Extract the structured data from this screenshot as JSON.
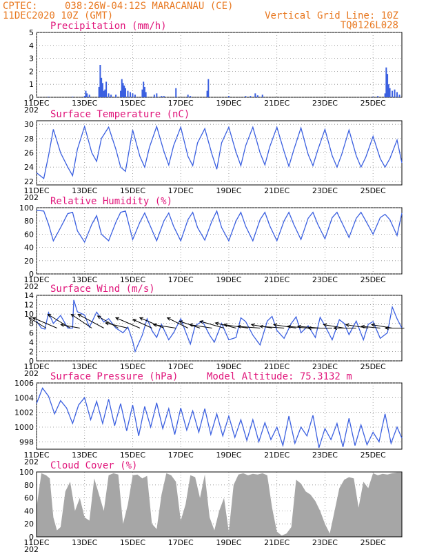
{
  "header": {
    "source": "CPTEC:",
    "location": "038:26W-04:12S   MARACANAU (CE)",
    "init_time": "11DEC2020 10Z (GMT)",
    "grid_note": "Vertical Grid Line: 10Z",
    "model_id": "TQ0126L028"
  },
  "colors": {
    "header": "#e87820",
    "title": "#e0147a",
    "series": "#3a5fe0",
    "cloud": "#a6a6a6"
  },
  "x_axis": {
    "labels": [
      "11DEC",
      "13DEC",
      "15DEC",
      "17DEC",
      "19DEC",
      "21DEC",
      "23DEC",
      "25DEC"
    ],
    "label_days": [
      0,
      2,
      4,
      6,
      8,
      10,
      12,
      14
    ],
    "range_days": [
      0,
      15.2
    ],
    "year_fragment": "202"
  },
  "chart_data": [
    {
      "type": "bar",
      "title": "Precipitation (mm/h)",
      "ylim": [
        0,
        5
      ],
      "yticks": [
        0,
        1,
        2,
        3,
        4,
        5
      ],
      "grid": true,
      "x": [
        0.5,
        1.5,
        2.0,
        2.05,
        2.1,
        2.2,
        2.6,
        2.65,
        2.7,
        2.75,
        2.8,
        2.85,
        2.9,
        3.0,
        3.1,
        3.3,
        3.5,
        3.55,
        3.6,
        3.65,
        3.7,
        3.8,
        3.9,
        4.0,
        4.1,
        4.4,
        4.45,
        4.5,
        4.55,
        4.9,
        5.0,
        5.2,
        5.3,
        5.8,
        6.3,
        6.4,
        7.1,
        7.15,
        8.0,
        8.7,
        8.9,
        9.1,
        9.2,
        9.4,
        14.0,
        14.2,
        14.5,
        14.55,
        14.6,
        14.65,
        14.7,
        14.8,
        14.9,
        15.0,
        15.1
      ],
      "values": [
        0.05,
        0.05,
        0.1,
        0.5,
        0.3,
        0.2,
        0.8,
        2.5,
        1.5,
        1.1,
        0.5,
        0.6,
        1.2,
        0.3,
        0.2,
        0.2,
        0.5,
        1.4,
        1.1,
        0.9,
        0.7,
        0.5,
        0.4,
        0.3,
        0.2,
        0.6,
        1.2,
        0.8,
        0.4,
        0.2,
        0.3,
        0.1,
        0.1,
        0.7,
        0.2,
        0.1,
        0.5,
        1.4,
        0.1,
        0.1,
        0.1,
        0.3,
        0.15,
        0.2,
        0.05,
        0.1,
        0.3,
        2.3,
        1.8,
        1.0,
        0.7,
        0.5,
        0.6,
        0.4,
        0.2
      ]
    },
    {
      "type": "line",
      "title": "Surface Temperature (nC)",
      "ylim": [
        21.5,
        30.5
      ],
      "yticks": [
        22,
        24,
        26,
        28,
        30
      ],
      "grid": true,
      "x": [
        0,
        0.3,
        0.5,
        0.7,
        1.0,
        1.3,
        1.5,
        1.7,
        2.0,
        2.3,
        2.5,
        2.7,
        3.0,
        3.3,
        3.5,
        3.7,
        4.0,
        4.3,
        4.5,
        4.7,
        5.0,
        5.3,
        5.5,
        5.7,
        6.0,
        6.3,
        6.5,
        6.7,
        7.0,
        7.3,
        7.5,
        7.7,
        8.0,
        8.3,
        8.5,
        8.7,
        9.0,
        9.3,
        9.5,
        9.7,
        10.0,
        10.3,
        10.5,
        10.7,
        11.0,
        11.3,
        11.5,
        11.7,
        12.0,
        12.3,
        12.5,
        12.7,
        13.0,
        13.3,
        13.5,
        13.7,
        14.0,
        14.3,
        14.5,
        14.7,
        15.0,
        15.2
      ],
      "values": [
        23.2,
        22.4,
        25.6,
        29.3,
        26.0,
        24.0,
        22.8,
        26.5,
        29.7,
        26.0,
        24.8,
        28.0,
        29.6,
        26.5,
        24.0,
        23.4,
        29.2,
        25.5,
        24.0,
        26.8,
        29.7,
        26.2,
        24.3,
        27.0,
        29.6,
        25.5,
        24.2,
        27.4,
        29.4,
        25.8,
        23.7,
        27.4,
        29.6,
        26.1,
        24.2,
        27.0,
        29.6,
        26.0,
        24.3,
        26.8,
        29.6,
        26.2,
        24.1,
        26.4,
        29.5,
        25.8,
        24.2,
        26.4,
        29.3,
        25.6,
        24.0,
        25.8,
        29.2,
        25.6,
        24.0,
        25.4,
        28.3,
        25.2,
        24.0,
        25.2,
        27.8,
        24.6
      ]
    },
    {
      "type": "line",
      "title": "Relative Humidity (%)",
      "ylim": [
        0,
        100
      ],
      "yticks": [
        0,
        20,
        40,
        60,
        80,
        100
      ],
      "grid": true,
      "x": [
        0,
        0.3,
        0.5,
        0.7,
        1.0,
        1.3,
        1.5,
        1.7,
        2.0,
        2.3,
        2.5,
        2.7,
        3.0,
        3.3,
        3.5,
        3.7,
        4.0,
        4.3,
        4.5,
        4.7,
        5.0,
        5.3,
        5.5,
        5.7,
        6.0,
        6.3,
        6.5,
        6.7,
        7.0,
        7.3,
        7.5,
        7.7,
        8.0,
        8.3,
        8.5,
        8.7,
        9.0,
        9.3,
        9.5,
        9.7,
        10.0,
        10.3,
        10.5,
        10.7,
        11.0,
        11.3,
        11.5,
        11.7,
        12.0,
        12.3,
        12.5,
        12.7,
        13.0,
        13.3,
        13.5,
        13.7,
        14.0,
        14.3,
        14.5,
        14.7,
        15.0,
        15.2
      ],
      "values": [
        96,
        95,
        75,
        50,
        70,
        91,
        93,
        65,
        48,
        75,
        88,
        60,
        50,
        78,
        93,
        95,
        52,
        78,
        92,
        75,
        50,
        80,
        92,
        72,
        50,
        82,
        93,
        70,
        51,
        80,
        95,
        70,
        50,
        80,
        93,
        72,
        50,
        82,
        93,
        73,
        50,
        80,
        93,
        75,
        52,
        84,
        93,
        75,
        53,
        85,
        93,
        78,
        55,
        84,
        93,
        80,
        60,
        85,
        90,
        82,
        58,
        92
      ]
    },
    {
      "type": "line",
      "title": "Surface Wind (m/s)",
      "ylim": [
        0,
        14
      ],
      "yticks": [
        0,
        2,
        4,
        6,
        8,
        10,
        12,
        14
      ],
      "grid": true,
      "x": [
        0,
        0.2,
        0.35,
        0.5,
        0.7,
        1.0,
        1.3,
        1.5,
        1.55,
        1.7,
        2.0,
        2.2,
        2.5,
        2.8,
        3.0,
        3.3,
        3.6,
        3.8,
        4.0,
        4.1,
        4.4,
        4.6,
        4.8,
        5.0,
        5.2,
        5.5,
        5.7,
        6.0,
        6.2,
        6.4,
        6.6,
        6.9,
        7.2,
        7.4,
        7.7,
        8.0,
        8.3,
        8.5,
        8.7,
        9.0,
        9.3,
        9.6,
        9.8,
        10.0,
        10.3,
        10.6,
        10.8,
        11.0,
        11.3,
        11.6,
        11.8,
        12.0,
        12.3,
        12.6,
        12.8,
        13.0,
        13.3,
        13.6,
        13.8,
        14.0,
        14.3,
        14.6,
        14.8,
        15.0,
        15.2
      ],
      "values": [
        8.5,
        7.0,
        6.8,
        10.3,
        8.0,
        9.7,
        7.0,
        7.0,
        13.0,
        10.5,
        9.8,
        7.2,
        10.4,
        8.3,
        9.0,
        7.0,
        6.0,
        7.2,
        4.2,
        2.0,
        5.5,
        9.0,
        6.5,
        5.0,
        7.8,
        4.5,
        6.0,
        9.0,
        6.2,
        3.6,
        7.5,
        8.5,
        5.5,
        4.0,
        8.0,
        4.5,
        5.0,
        9.2,
        8.4,
        5.5,
        3.4,
        8.5,
        9.5,
        6.5,
        4.8,
        8.0,
        9.4,
        6.0,
        7.5,
        5.0,
        9.3,
        7.5,
        4.5,
        8.8,
        8.0,
        5.6,
        8.5,
        4.5,
        7.8,
        8.4,
        4.8,
        6.0,
        11.5,
        9.0,
        7.0
      ]
    },
    {
      "type": "line",
      "title": "Surface Pressure (hPa)",
      "annotation": "Model Altitude: 75.3132 m",
      "ylim": [
        997,
        1006
      ],
      "yticks": [
        998,
        1000,
        1002,
        1004,
        1006
      ],
      "grid": true,
      "x": [
        0,
        0.25,
        0.5,
        0.75,
        1.0,
        1.25,
        1.5,
        1.75,
        2.0,
        2.25,
        2.5,
        2.75,
        3.0,
        3.25,
        3.5,
        3.75,
        4.0,
        4.25,
        4.5,
        4.75,
        5.0,
        5.25,
        5.5,
        5.75,
        6.0,
        6.25,
        6.5,
        6.75,
        7.0,
        7.25,
        7.5,
        7.75,
        8.0,
        8.25,
        8.5,
        8.75,
        9.0,
        9.25,
        9.5,
        9.75,
        10.0,
        10.25,
        10.5,
        10.75,
        11.0,
        11.25,
        11.5,
        11.75,
        12.0,
        12.25,
        12.5,
        12.75,
        13.0,
        13.25,
        13.5,
        13.75,
        14.0,
        14.25,
        14.5,
        14.75,
        15.0,
        15.2
      ],
      "values": [
        1003.2,
        1005.3,
        1004.2,
        1001.8,
        1003.6,
        1002.6,
        1000.5,
        1003.0,
        1004.0,
        1001.0,
        1003.5,
        1000.5,
        1003.8,
        1000.2,
        1003.2,
        999.5,
        1003.0,
        998.8,
        1002.8,
        1000.0,
        1003.3,
        999.8,
        1002.5,
        999.0,
        1002.6,
        999.6,
        1002.2,
        999.3,
        1002.5,
        999.0,
        1001.8,
        998.8,
        1001.5,
        998.6,
        1001.0,
        998.2,
        1001.0,
        998.0,
        1000.6,
        998.3,
        1000.0,
        997.5,
        1001.5,
        997.8,
        1000.0,
        998.8,
        1001.6,
        997.2,
        999.8,
        998.3,
        1000.5,
        997.3,
        1001.2,
        997.5,
        1000.3,
        997.6,
        999.3,
        998.0,
        1001.8,
        997.8,
        1000.0,
        998.5
      ]
    },
    {
      "type": "area",
      "title": "Cloud Cover (%)",
      "ylim": [
        0,
        100
      ],
      "yticks": [
        0,
        20,
        40,
        60,
        80,
        100
      ],
      "grid": true,
      "x": [
        0,
        0.2,
        0.4,
        0.55,
        0.7,
        0.85,
        1.0,
        1.2,
        1.4,
        1.6,
        1.8,
        2.0,
        2.2,
        2.4,
        2.6,
        2.8,
        3.0,
        3.2,
        3.4,
        3.6,
        3.8,
        4.0,
        4.2,
        4.4,
        4.6,
        4.8,
        5.0,
        5.2,
        5.4,
        5.6,
        5.8,
        6.0,
        6.2,
        6.4,
        6.6,
        6.8,
        7.0,
        7.2,
        7.4,
        7.6,
        7.8,
        8.0,
        8.2,
        8.4,
        8.6,
        8.8,
        9.0,
        9.2,
        9.4,
        9.6,
        9.8,
        10.0,
        10.2,
        10.4,
        10.6,
        10.8,
        11.0,
        11.2,
        11.4,
        11.6,
        11.8,
        12.0,
        12.2,
        12.4,
        12.6,
        12.8,
        13.0,
        13.2,
        13.4,
        13.6,
        13.8,
        14.0,
        14.2,
        14.4,
        14.6,
        14.8,
        15.0,
        15.2
      ],
      "values": [
        45,
        98,
        95,
        90,
        30,
        10,
        15,
        70,
        85,
        40,
        60,
        30,
        25,
        90,
        65,
        40,
        95,
        98,
        96,
        20,
        50,
        95,
        96,
        90,
        94,
        20,
        12,
        65,
        98,
        95,
        85,
        25,
        50,
        95,
        92,
        60,
        96,
        30,
        10,
        40,
        60,
        8,
        80,
        96,
        98,
        95,
        97,
        96,
        98,
        95,
        45,
        8,
        2,
        5,
        15,
        88,
        82,
        70,
        65,
        55,
        40,
        20,
        5,
        40,
        75,
        88,
        92,
        90,
        45,
        85,
        75,
        98,
        95,
        97,
        96,
        98,
        99,
        99
      ]
    }
  ],
  "wind_vectors": {
    "x": [
      0.0,
      0.45,
      1.0,
      1.4,
      1.9,
      2.4,
      3.0,
      3.4,
      3.9,
      4.4,
      4.9,
      5.4,
      5.9,
      6.4,
      6.9,
      7.4,
      7.9,
      8.4,
      8.9,
      9.4,
      9.9,
      10.4,
      10.9,
      11.4,
      11.9,
      12.4,
      12.9,
      13.4,
      13.9,
      14.4,
      14.9
    ],
    "dx_ms": [
      -5.0,
      -7.0,
      -6.5,
      -5.5,
      -6.0,
      -7.5,
      -6.0,
      -6.5,
      -7.0,
      -5.5,
      -7.0,
      -6.5,
      -6.0,
      -6.0,
      -6.5,
      -7.0,
      -6.0,
      -7.0,
      -6.5,
      -6.0,
      -7.0,
      -6.5,
      -6.0,
      -6.5,
      -7.0,
      -6.0,
      -6.5,
      -6.5,
      -5.5,
      -6.0,
      -5.5
    ],
    "dy_ms": [
      3.0,
      3.0,
      4.0,
      1.0,
      4.0,
      4.0,
      3.5,
      1.5,
      3.0,
      2.5,
      3.0,
      1.0,
      3.0,
      2.0,
      1.0,
      2.0,
      1.5,
      1.0,
      0.5,
      1.0,
      0.5,
      1.0,
      0.5,
      0.5,
      0.0,
      1.0,
      0.0,
      1.0,
      0.5,
      1.0,
      0.0
    ],
    "y_level": 7
  }
}
